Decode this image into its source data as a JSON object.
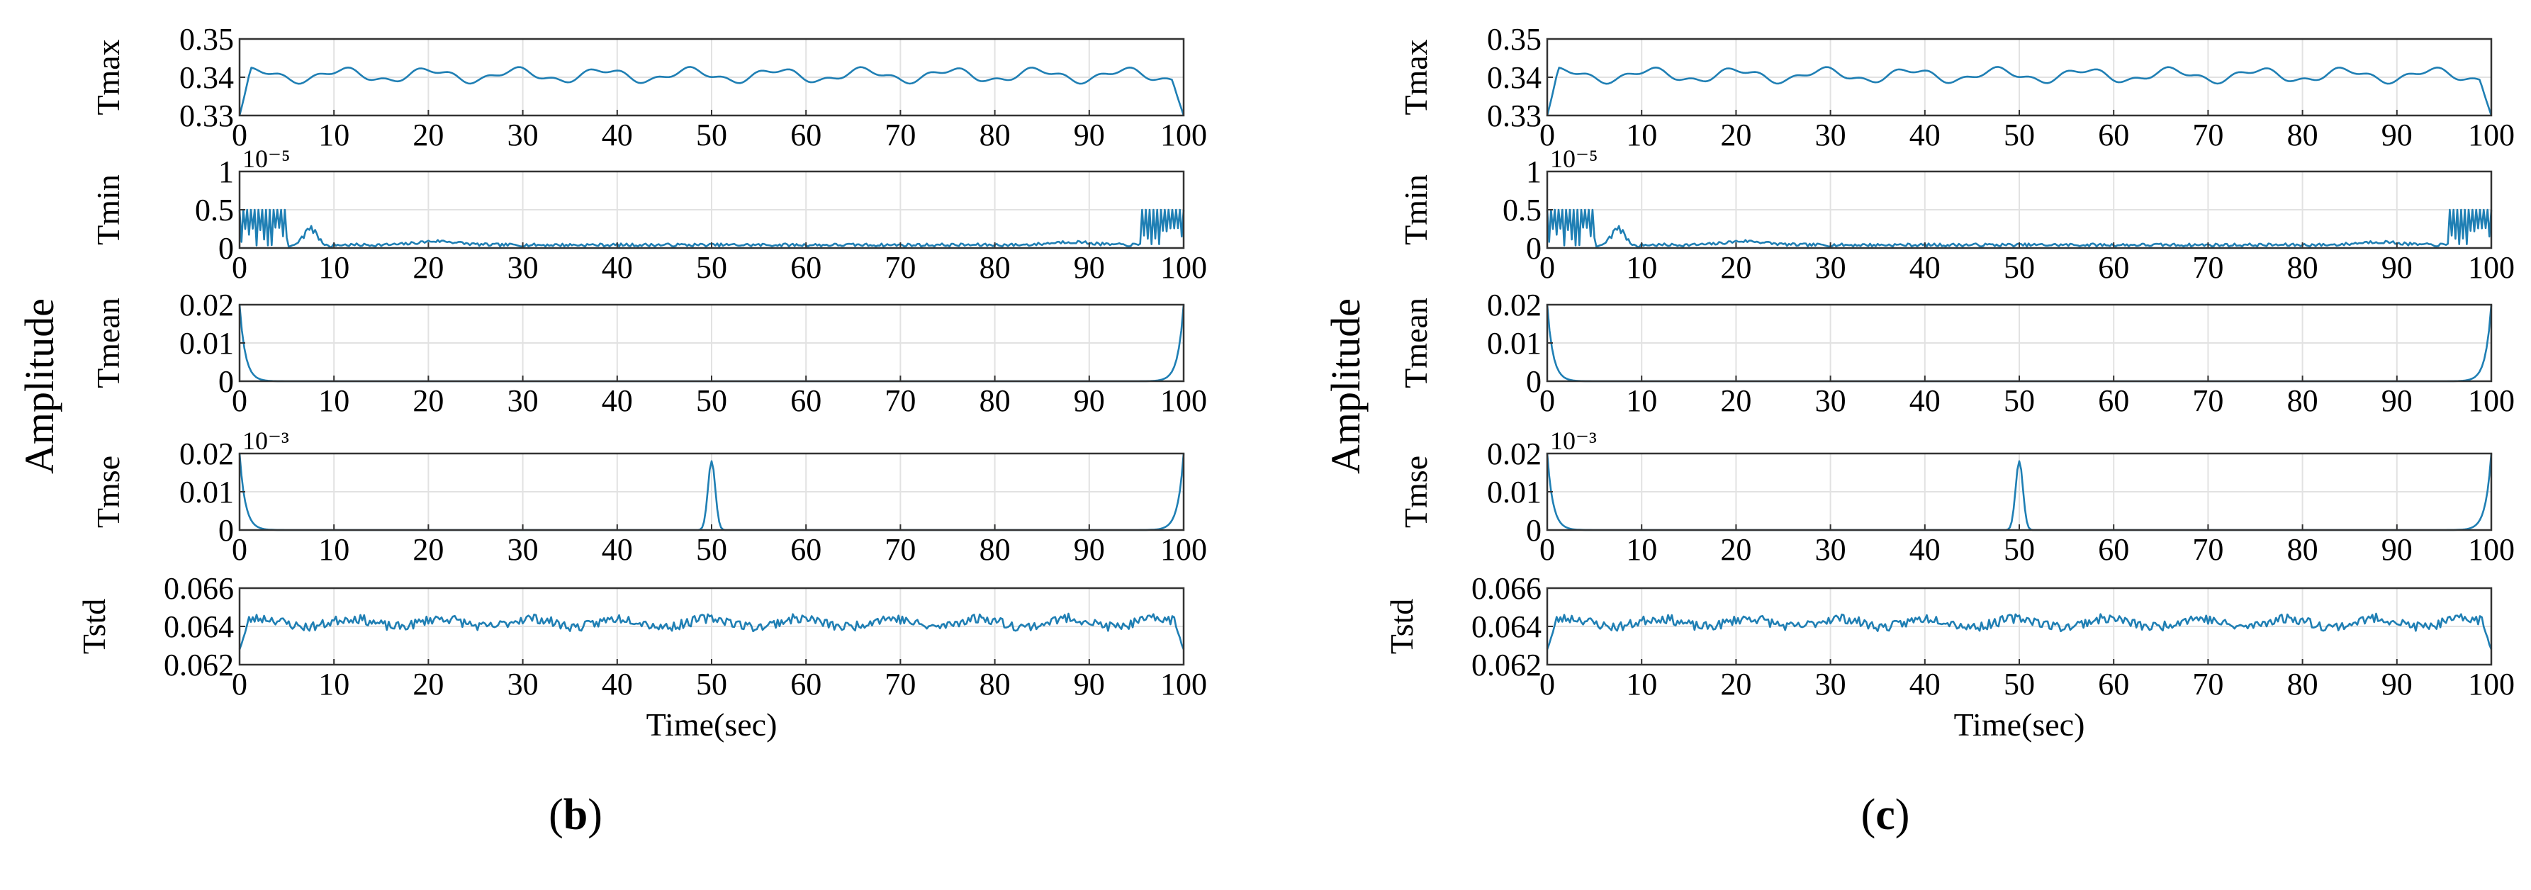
{
  "colors": {
    "line": "#1f7fb4",
    "axis": "#333333",
    "grid": "#e2e2e2"
  },
  "shared": {
    "y_label": "Amplitude",
    "x_label": "Time(sec)",
    "x_ticks": [
      "0",
      "10",
      "20",
      "30",
      "40",
      "50",
      "60",
      "70",
      "80",
      "90",
      "100"
    ]
  },
  "chart_data": [
    {
      "panel": "b",
      "label_open": "(",
      "label_letter": "b",
      "label_close": ")",
      "type": "line",
      "xlabel": "Time(sec)",
      "ylabel": "Amplitude",
      "xlim": [
        0,
        100
      ],
      "subplots": [
        {
          "name": "Tmax",
          "ylim": [
            0.33,
            0.35
          ],
          "yticks": [
            "0.33",
            "0.34",
            "0.35"
          ],
          "exponent": "",
          "pattern": "tmax"
        },
        {
          "name": "Tmin",
          "ylim": [
            0,
            1
          ],
          "yticks": [
            "0",
            "0.5",
            "1"
          ],
          "exponent": "10⁻⁵",
          "pattern": "tmin"
        },
        {
          "name": "Tmean",
          "ylim": [
            0,
            0.02
          ],
          "yticks": [
            "0",
            "0.01",
            "0.02"
          ],
          "exponent": "",
          "pattern": "tmean"
        },
        {
          "name": "Tmse",
          "ylim": [
            0,
            0.02
          ],
          "yticks": [
            "0",
            "0.01",
            "0.02"
          ],
          "exponent": "10⁻³",
          "pattern": "tmse"
        },
        {
          "name": "Tstd",
          "ylim": [
            0.062,
            0.066
          ],
          "yticks": [
            "0.062",
            "0.064",
            "0.066"
          ],
          "exponent": "",
          "pattern": "tstd"
        }
      ]
    },
    {
      "panel": "c",
      "label_open": "(",
      "label_letter": "c",
      "label_close": ")",
      "type": "line",
      "xlabel": "Time(sec)",
      "ylabel": "Amplitude",
      "xlim": [
        0,
        100
      ],
      "subplots": [
        {
          "name": "Tmax",
          "ylim": [
            0.33,
            0.35
          ],
          "yticks": [
            "0.33",
            "0.34",
            "0.35"
          ],
          "exponent": "",
          "pattern": "tmax"
        },
        {
          "name": "Tmin",
          "ylim": [
            0,
            1
          ],
          "yticks": [
            "0",
            "0.5",
            "1"
          ],
          "exponent": "10⁻⁵",
          "pattern": "tmin"
        },
        {
          "name": "Tmean",
          "ylim": [
            0,
            0.02
          ],
          "yticks": [
            "0",
            "0.01",
            "0.02"
          ],
          "exponent": "",
          "pattern": "tmean"
        },
        {
          "name": "Tmse",
          "ylim": [
            0,
            0.02
          ],
          "yticks": [
            "0",
            "0.01",
            "0.02"
          ],
          "exponent": "10⁻³",
          "pattern": "tmse"
        },
        {
          "name": "Tstd",
          "ylim": [
            0.062,
            0.066
          ],
          "yticks": [
            "0.062",
            "0.064",
            "0.066"
          ],
          "exponent": "",
          "pattern": "tstd"
        }
      ]
    }
  ]
}
